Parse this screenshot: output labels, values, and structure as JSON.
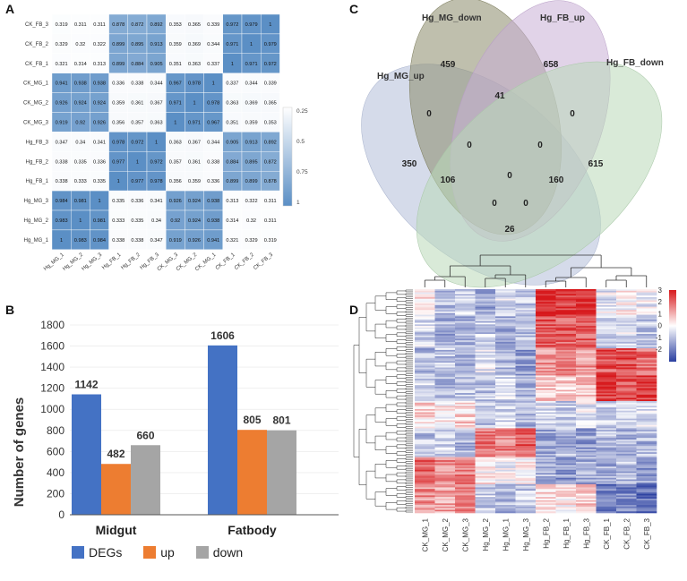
{
  "figure": {
    "panel_labels": [
      "A",
      "B",
      "C",
      "D"
    ]
  },
  "chart_data": [
    {
      "panel": "A",
      "type": "heatmap",
      "title": "",
      "rows": [
        "CK_FB_3",
        "CK_FB_2",
        "CK_FB_1",
        "CK_MG_1",
        "CK_MG_2",
        "CK_MG_3",
        "Hg_FB_3",
        "Hg_FB_2",
        "Hg_FB_1",
        "Hg_MG_3",
        "Hg_MG_2",
        "Hg_MG_1"
      ],
      "columns": [
        "Hg_MG_1",
        "Hg_MG_2",
        "Hg_MG_3",
        "Hg_FB_1",
        "Hg_FB_2",
        "Hg_FB_3",
        "CK_MG_3",
        "CK_MG_2",
        "CK_MG_1",
        "CK_FB_1",
        "CK_FB_2",
        "CK_FB_3"
      ],
      "values": [
        [
          "0.319",
          "0.311",
          "0.311",
          "0.878",
          "0.872",
          "0.892",
          "0.353",
          "0.365",
          "0.339",
          "0.972",
          "0.979",
          "1"
        ],
        [
          "0.329",
          "0.32",
          "0.322",
          "0.899",
          "0.895",
          "0.913",
          "0.359",
          "0.369",
          "0.344",
          "0.971",
          "1",
          "0.979"
        ],
        [
          "0.321",
          "0.314",
          "0.313",
          "0.899",
          "0.884",
          "0.905",
          "0.351",
          "0.363",
          "0.337",
          "1",
          "0.971",
          "0.972"
        ],
        [
          "0.941",
          "0.938",
          "0.938",
          "0.336",
          "0.338",
          "0.344",
          "0.967",
          "0.978",
          "1",
          "0.337",
          "0.344",
          "0.339"
        ],
        [
          "0.926",
          "0.924",
          "0.924",
          "0.359",
          "0.361",
          "0.367",
          "0.971",
          "1",
          "0.978",
          "0.363",
          "0.369",
          "0.365"
        ],
        [
          "0.919",
          "0.92",
          "0.926",
          "0.356",
          "0.357",
          "0.363",
          "1",
          "0.971",
          "0.967",
          "0.351",
          "0.359",
          "0.353"
        ],
        [
          "0.347",
          "0.34",
          "0.341",
          "0.978",
          "0.972",
          "1",
          "0.363",
          "0.367",
          "0.344",
          "0.905",
          "0.913",
          "0.892"
        ],
        [
          "0.338",
          "0.335",
          "0.336",
          "0.977",
          "1",
          "0.972",
          "0.357",
          "0.361",
          "0.338",
          "0.884",
          "0.895",
          "0.872"
        ],
        [
          "0.338",
          "0.333",
          "0.335",
          "1",
          "0.977",
          "0.978",
          "0.356",
          "0.359",
          "0.336",
          "0.899",
          "0.899",
          "0.878"
        ],
        [
          "0.984",
          "0.981",
          "1",
          "0.335",
          "0.336",
          "0.341",
          "0.926",
          "0.924",
          "0.938",
          "0.313",
          "0.322",
          "0.311"
        ],
        [
          "0.983",
          "1",
          "0.981",
          "0.333",
          "0.335",
          "0.34",
          "0.92",
          "0.924",
          "0.938",
          "0.314",
          "0.32",
          "0.311"
        ],
        [
          "1",
          "0.983",
          "0.984",
          "0.338",
          "0.338",
          "0.347",
          "0.919",
          "0.926",
          "0.941",
          "0.321",
          "0.329",
          "0.319"
        ]
      ],
      "colorbar_ticks": [
        "0.25",
        "0.5",
        "0.75",
        "1"
      ],
      "colorbar_range": [
        0.25,
        1
      ],
      "colors": {
        "low": "#ffffff",
        "high": "#5b8fc5",
        "text": "#111111"
      }
    },
    {
      "panel": "B",
      "type": "bar",
      "title": "",
      "categories": [
        "Midgut",
        "Fatbody"
      ],
      "series": [
        {
          "name": "DEGs",
          "values": [
            1142,
            1606
          ],
          "color": "#4472c4"
        },
        {
          "name": "up",
          "values": [
            482,
            805
          ],
          "color": "#ed7d31"
        },
        {
          "name": "down",
          "values": [
            660,
            801
          ],
          "color": "#a5a5a5"
        }
      ],
      "data_labels": [
        [
          "1142",
          "482",
          "660"
        ],
        [
          "1606",
          "805",
          "801"
        ]
      ],
      "ylabel": "Number of genes",
      "xlabel": "",
      "ylim": [
        0,
        1800
      ],
      "yticks": [
        "0",
        "200",
        "400",
        "600",
        "800",
        "1000",
        "1200",
        "1400",
        "1600",
        "1800"
      ],
      "legend_position": "bottom"
    },
    {
      "panel": "C",
      "type": "venn",
      "sets": [
        {
          "name": "Hg_MG_up",
          "color": "#b9c3dc"
        },
        {
          "name": "Hg_MG_down",
          "color": "#8a8a6a"
        },
        {
          "name": "Hg_FB_up",
          "color": "#c8aed6"
        },
        {
          "name": "Hg_FB_down",
          "color": "#b9d8b8"
        }
      ],
      "region_counts": [
        "459",
        "658",
        "41",
        "0",
        "0",
        "0",
        "0",
        "350",
        "615",
        "106",
        "0",
        "160",
        "0",
        "0",
        "26"
      ]
    },
    {
      "panel": "D",
      "type": "heatmap",
      "title": "",
      "columns": [
        "CK_MG_1",
        "CK_MG_2",
        "CK_MG_3",
        "Hg_MG_2",
        "Hg_MG_1",
        "Hg_MG_3",
        "Hg_FB_2",
        "Hg_FB_1",
        "Hg_FB_3",
        "CK_FB_1",
        "CK_FB_2",
        "CK_FB_3"
      ],
      "column_scores": [
        [
          0.2,
          -0.8,
          -0.6,
          -1.2,
          -0.4,
          -0.7,
          2.6,
          2.2,
          2.4,
          -0.3,
          0.1,
          -0.2
        ],
        [
          -0.5,
          -1.0,
          -0.9,
          -0.6,
          -1.1,
          -0.8,
          1.9,
          1.7,
          1.8,
          -0.6,
          -0.4,
          -0.7
        ],
        [
          -0.9,
          -0.7,
          -1.1,
          -0.3,
          -0.9,
          -1.2,
          1.2,
          1.5,
          1.1,
          1.8,
          2.0,
          1.6
        ],
        [
          -0.6,
          -1.0,
          -0.8,
          -0.7,
          -0.4,
          -0.9,
          0.7,
          0.5,
          0.6,
          2.1,
          1.9,
          2.2
        ],
        [
          0.4,
          0.2,
          0.5,
          -0.8,
          -0.6,
          -0.9,
          -0.4,
          -0.6,
          -0.3,
          -0.5,
          -0.7,
          -0.4
        ],
        [
          -0.8,
          -0.6,
          -0.9,
          1.6,
          1.4,
          1.8,
          -1.1,
          -0.9,
          -1.2,
          -0.8,
          -1.0,
          -0.9
        ],
        [
          1.6,
          1.3,
          1.4,
          0.2,
          -0.1,
          0.1,
          -0.9,
          -1.3,
          -1.1,
          -1.0,
          -0.8,
          -1.2
        ],
        [
          1.2,
          1.0,
          1.3,
          -0.6,
          -0.9,
          -0.7,
          0.4,
          0.2,
          0.5,
          -1.7,
          -1.5,
          -1.8
        ]
      ],
      "colorbar_ticks": [
        "3",
        "2",
        "1",
        "0",
        "-1",
        "-2"
      ],
      "colorbar_range": [
        -3,
        3
      ],
      "colors": {
        "low": "#2a3fa0",
        "mid": "#ffffff",
        "high": "#d7191c"
      }
    }
  ]
}
